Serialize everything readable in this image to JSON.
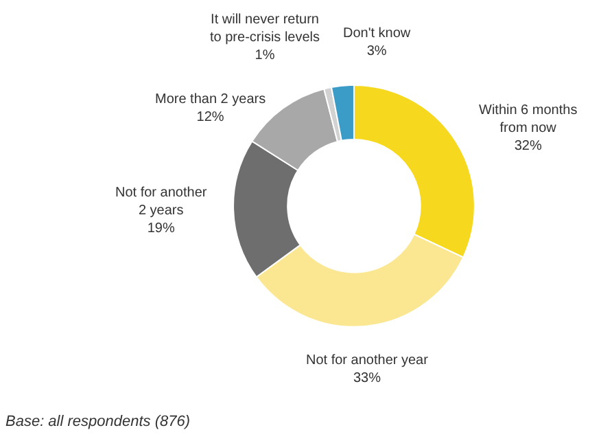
{
  "chart_data": {
    "type": "donut",
    "categories": [
      "Within 6 months from now",
      "Not for another year",
      "Not for another 2 years",
      "More than 2 years",
      "It will never return to pre-crisis levels",
      "Don't know"
    ],
    "values": [
      32,
      33,
      19,
      12,
      1,
      3
    ],
    "value_labels": [
      "32%",
      "33%",
      "19%",
      "12%",
      "1%",
      "3%"
    ],
    "colors": [
      "#f6d81e",
      "#fbe792",
      "#6e6e6e",
      "#a8a8a8",
      "#d2d2d2",
      "#3c9cc8"
    ],
    "legend": false,
    "annotations": [
      "Base: all respondents (876)"
    ]
  }
}
